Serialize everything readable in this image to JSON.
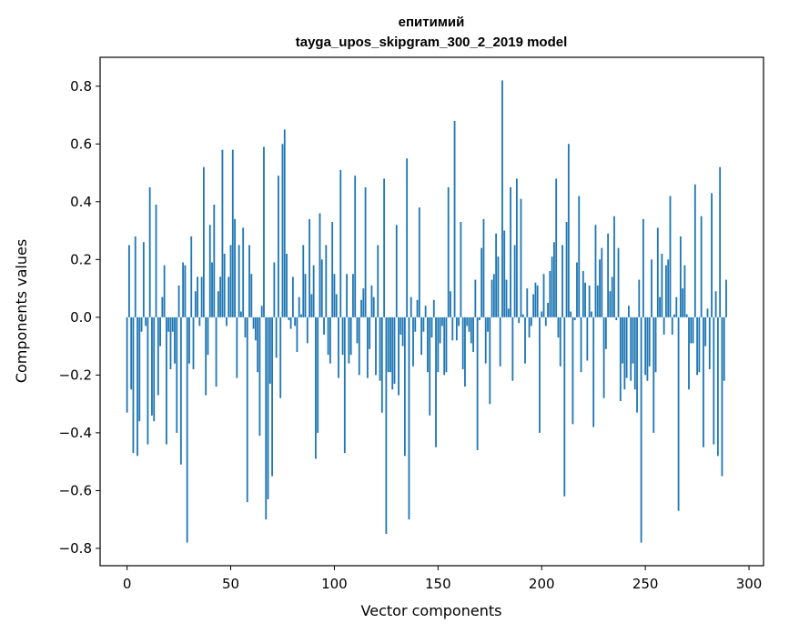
{
  "chart_data": {
    "type": "bar",
    "title_line1": "епитимий",
    "title_line2": "tayga_upos_skipgram_300_2_2019 model",
    "xlabel": "Vector components",
    "ylabel": "Components values",
    "xlim": [
      -13,
      307
    ],
    "ylim": [
      -0.86,
      0.9
    ],
    "xticks": [
      0,
      50,
      100,
      150,
      200,
      250,
      300
    ],
    "yticks": [
      -0.8,
      -0.6,
      -0.4,
      -0.2,
      0.0,
      0.2,
      0.4,
      0.6,
      0.8
    ],
    "bar_color": "#1f77b4",
    "values": [
      -0.33,
      0.25,
      -0.25,
      -0.47,
      0.28,
      -0.48,
      -0.36,
      -0.05,
      0.26,
      -0.03,
      -0.44,
      0.45,
      -0.34,
      -0.36,
      0.39,
      -0.27,
      -0.1,
      0.07,
      0.18,
      -0.44,
      -0.05,
      -0.18,
      -0.05,
      -0.16,
      -0.4,
      0.11,
      -0.51,
      0.19,
      0.18,
      -0.78,
      -0.16,
      0.28,
      -0.18,
      0.09,
      0.14,
      -0.03,
      0.14,
      0.52,
      -0.27,
      -0.13,
      0.32,
      0.19,
      0.39,
      -0.24,
      0.09,
      0.14,
      0.58,
      0.22,
      -0.03,
      0.14,
      0.25,
      0.58,
      0.34,
      -0.21,
      0.25,
      0.02,
      0.31,
      -0.07,
      -0.64,
      0.25,
      0.15,
      -0.04,
      -0.08,
      -0.19,
      -0.41,
      0.04,
      0.59,
      -0.7,
      -0.63,
      -0.23,
      -0.55,
      0.19,
      -0.14,
      0.49,
      -0.28,
      0.6,
      0.65,
      0.22,
      -0.01,
      -0.04,
      0.14,
      -0.03,
      -0.12,
      0.07,
      0.01,
      0.25,
      0.15,
      -0.09,
      0.34,
      0.08,
      0.18,
      -0.49,
      -0.4,
      0.36,
      0.2,
      -0.06,
      0.25,
      -0.13,
      -0.16,
      0.33,
      0.15,
      0.08,
      -0.21,
      0.51,
      -0.13,
      -0.47,
      0.15,
      -0.16,
      -0.13,
      0.15,
      0.49,
      -0.09,
      -0.2,
      0.06,
      0.1,
      0.45,
      -0.21,
      -0.11,
      0.11,
      0.07,
      -0.2,
      0.25,
      -0.22,
      -0.33,
      0.48,
      -0.75,
      -0.19,
      -0.19,
      -0.25,
      -0.23,
      0.32,
      -0.27,
      -0.06,
      -0.1,
      -0.48,
      0.55,
      -0.7,
      0.07,
      -0.17,
      -0.05,
      0.06,
      0.38,
      -0.13,
      -0.05,
      0.04,
      -0.19,
      -0.34,
      -0.07,
      0.06,
      -0.45,
      -0.19,
      -0.09,
      -0.03,
      -0.2,
      -0.19,
      0.45,
      0.09,
      -0.08,
      0.68,
      -0.08,
      -0.03,
      0.33,
      -0.18,
      -0.24,
      -0.03,
      -0.05,
      -0.09,
      -0.12,
      0.13,
      -0.46,
      -0.01,
      0.24,
      0.34,
      -0.16,
      -0.05,
      -0.3,
      0.13,
      0.15,
      0.29,
      0.21,
      -0.17,
      0.82,
      0.3,
      0.13,
      0.03,
      0.45,
      -0.22,
      0.25,
      0.48,
      -0.02,
      0.41,
      0.01,
      -0.16,
      0.1,
      -0.07,
      -0.03,
      0.08,
      0.12,
      0.11,
      -0.4,
      0.02,
      0.15,
      -0.03,
      0.05,
      0.16,
      0.21,
      0.26,
      0.48,
      -0.07,
      -0.17,
      0.25,
      -0.62,
      0.33,
      0.6,
      0.02,
      -0.37,
      -0.01,
      0.19,
      0.42,
      -0.19,
      0.16,
      0.12,
      -0.15,
      0.11,
      0.02,
      -0.38,
      0.32,
      0.11,
      0.2,
      0.24,
      -0.28,
      -0.11,
      0.29,
      0.09,
      0.14,
      0.35,
      -0.01,
      0.24,
      -0.29,
      -0.16,
      -0.25,
      -0.21,
      0.04,
      -0.22,
      -0.16,
      -0.25,
      -0.33,
      0.13,
      -0.78,
      0.34,
      -0.2,
      -0.22,
      -0.17,
      0.2,
      -0.4,
      -0.19,
      0.31,
      0.07,
      0.22,
      -0.06,
      0.18,
      0.2,
      0.42,
      -0.06,
      0.01,
      0.07,
      -0.67,
      0.28,
      0.1,
      0.18,
      0.01,
      -0.25,
      -0.09,
      -0.09,
      0.46,
      -0.2,
      -0.19,
      0.35,
      -0.45,
      -0.1,
      0.03,
      -0.18,
      0.43,
      -0.44,
      0.09,
      -0.48,
      0.52,
      -0.55,
      -0.22,
      0.13
    ]
  }
}
